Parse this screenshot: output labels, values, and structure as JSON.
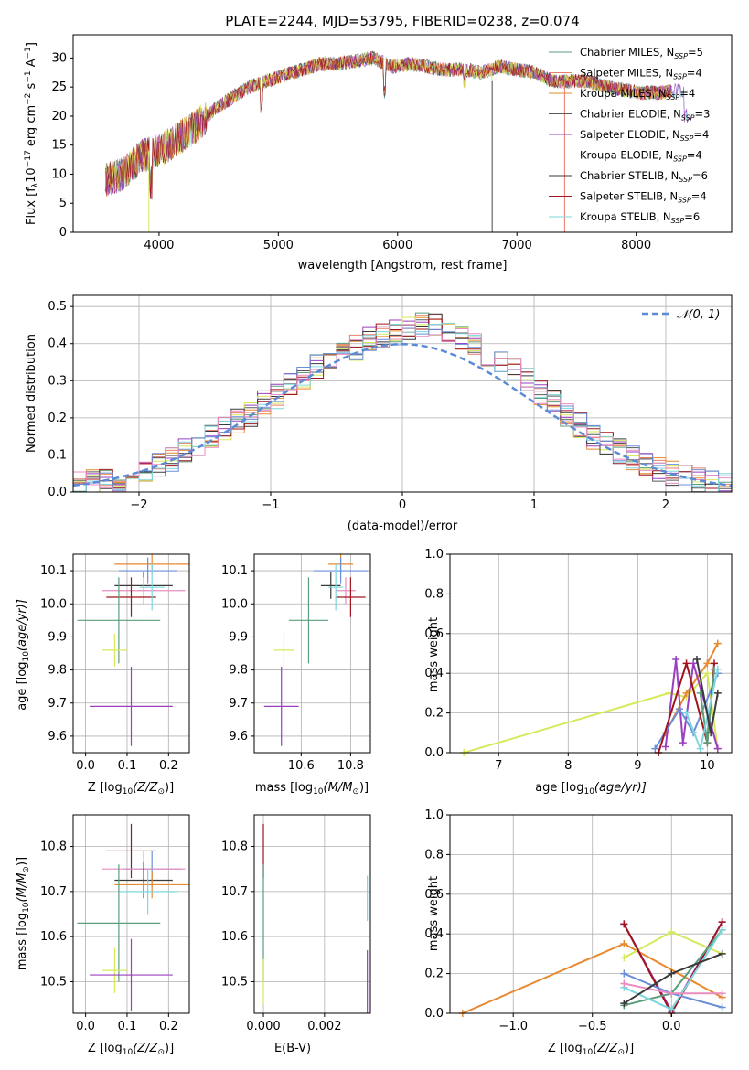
{
  "colors": [
    "#5b9e7c",
    "#e97d6c",
    "#e7892f",
    "#5a5a5a",
    "#9b3fbf",
    "#d7e85b",
    "#3a3a3a",
    "#a0141e",
    "#7dd6de"
  ],
  "extra_colors": {
    "blue": "#6a8fd8",
    "pink": "#e98cc0",
    "gaussian": "#5b8bd6"
  },
  "spectrum": {
    "title": "PLATE=2244, MJD=53795, FIBERID=0238, z=0.074",
    "ylabel": "Flux [f$_\\lambda$10$^{-17}$ erg cm$^{-2}$ s$^{-1}$ A$^{-1}$]",
    "ylabel_parts": [
      "Flux [f",
      "λ",
      "10",
      "−17",
      " erg cm",
      "−2",
      " s",
      "−1",
      " A",
      "−1",
      "]"
    ],
    "xlabel": "wavelength [Angstrom, rest frame]",
    "xticks": [
      "4000",
      "5000",
      "6000",
      "7000",
      "8000"
    ],
    "yticks": [
      "0",
      "5",
      "10",
      "15",
      "20",
      "25",
      "30"
    ],
    "legend": [
      {
        "label": "Chabrier MILES, N",
        "sub": "SSP",
        "val": "=5"
      },
      {
        "label": "Salpeter MILES, N",
        "sub": "SSP",
        "val": "=4"
      },
      {
        "label": "Kroupa MILES, N",
        "sub": "SSP",
        "val": "=4"
      },
      {
        "label": "Chabrier ELODIE, N",
        "sub": "SSP",
        "val": "=3"
      },
      {
        "label": "Salpeter ELODIE, N",
        "sub": "SSP",
        "val": "=4"
      },
      {
        "label": "Kroupa ELODIE, N",
        "sub": "SSP",
        "val": "=4"
      },
      {
        "label": "Chabrier STELIB, N",
        "sub": "SSP",
        "val": "=6"
      },
      {
        "label": "Salpeter STELIB, N",
        "sub": "SSP",
        "val": "=4"
      },
      {
        "label": "Kroupa STELIB, N",
        "sub": "SSP",
        "val": "=6"
      }
    ]
  },
  "hist": {
    "ylabel": "Normed distribution",
    "xlabel": "(data-model)/error",
    "xticks": [
      "−2",
      "−1",
      "0",
      "1",
      "2"
    ],
    "yticks": [
      "0.0",
      "0.1",
      "0.2",
      "0.3",
      "0.4",
      "0.5"
    ],
    "legend": "𝒩(0, 1)"
  },
  "age_Z": {
    "ylabel": "age  [log",
    "ylabel_b": "(age/yr)]",
    "xlabel": "Z [log",
    "xlabel_b": "(Z/Z",
    "xticks": [
      "0.0",
      "0.1",
      "0.2"
    ],
    "yticks": [
      "9.6",
      "9.7",
      "9.8",
      "9.9",
      "10.0",
      "10.1"
    ]
  },
  "age_mass": {
    "xlabel": "mass [log",
    "xlabel_b": "(M/M",
    "xticks": [
      "10.6",
      "10.8"
    ],
    "yticks": [
      "9.6",
      "9.7",
      "9.8",
      "9.9",
      "10.0",
      "10.1"
    ]
  },
  "mw_age": {
    "ylabel": "mass weight",
    "xlabel": "age  [log",
    "xlabel_b": "(age/yr)]",
    "xticks": [
      "7",
      "8",
      "9",
      "10"
    ],
    "yticks": [
      "0.0",
      "0.2",
      "0.4",
      "0.6",
      "0.8",
      "1.0"
    ]
  },
  "mass_Z": {
    "ylabel": "mass [log",
    "ylabel_b": "(M/M",
    "xlabel": "Z [log",
    "xlabel_b": "(Z/Z",
    "xticks": [
      "0.0",
      "0.1",
      "0.2"
    ],
    "yticks": [
      "10.5",
      "10.6",
      "10.7",
      "10.8"
    ]
  },
  "mass_ebv": {
    "xlabel": "E(B-V)",
    "xticks": [
      "0.000",
      "0.002"
    ],
    "yticks": [
      "10.5",
      "10.6",
      "10.7",
      "10.8"
    ]
  },
  "mw_Z": {
    "ylabel": "mass weight",
    "xlabel": "Z [log",
    "xlabel_b": "(Z/Z",
    "xticks": [
      "−1.0",
      "−0.5",
      "0.0"
    ],
    "yticks": [
      "0.0",
      "0.2",
      "0.4",
      "0.6",
      "0.8",
      "1.0"
    ]
  },
  "chart_data": [
    {
      "type": "line",
      "title": "PLATE=2244, MJD=53795, FIBERID=0238, z=0.074",
      "xlabel": "wavelength [Angstrom, rest frame]",
      "ylabel": "Flux [fλ10−17 erg cm−2 s−1 A−1]",
      "xlim": [
        3280,
        8800
      ],
      "ylim": [
        0,
        34
      ],
      "x": [
        3550,
        3700,
        3850,
        4000,
        4150,
        4300,
        4450,
        4600,
        4750,
        4900,
        5050,
        5200,
        5350,
        5500,
        5650,
        5800,
        5950,
        6100,
        6250,
        6400,
        6550,
        6700,
        6850,
        7000,
        7150,
        7300,
        7450,
        7600,
        7750,
        7900,
        8050,
        8200,
        8350,
        8500,
        8650,
        8800
      ],
      "series": [
        {
          "values": [
            9,
            10,
            13,
            14,
            16,
            18,
            21,
            23,
            25,
            26,
            27,
            28,
            29,
            29,
            29.5,
            30,
            28.5,
            29,
            28.5,
            28,
            28,
            27.5,
            28.5,
            28,
            27.5,
            26,
            26,
            26,
            25,
            24.5,
            24,
            24,
            24.5,
            23.5,
            22,
            21
          ]
        }
      ],
      "grid": false,
      "legend_position": "upper right"
    },
    {
      "type": "bar",
      "xlabel": "(data-model)/error",
      "ylabel": "Normed distribution",
      "xlim": [
        -2.5,
        2.5
      ],
      "ylim": [
        0,
        0.53
      ],
      "bin_width": 0.1,
      "x": [
        -2.5,
        -2.4,
        -2.3,
        -2.2,
        -2.1,
        -2.0,
        -1.9,
        -1.8,
        -1.7,
        -1.6,
        -1.5,
        -1.4,
        -1.3,
        -1.2,
        -1.1,
        -1.0,
        -0.9,
        -0.8,
        -0.7,
        -0.6,
        -0.5,
        -0.4,
        -0.3,
        -0.2,
        -0.1,
        0.0,
        0.1,
        0.2,
        0.3,
        0.4,
        0.5,
        0.6,
        0.7,
        0.8,
        0.9,
        1.0,
        1.1,
        1.2,
        1.3,
        1.4,
        1.5,
        1.6,
        1.7,
        1.8,
        1.9,
        2.0,
        2.1,
        2.2,
        2.3,
        2.4
      ],
      "series": [
        {
          "name": "envelope",
          "values": [
            0.02,
            0.025,
            0.03,
            0.035,
            0.045,
            0.055,
            0.07,
            0.09,
            0.11,
            0.13,
            0.15,
            0.17,
            0.19,
            0.21,
            0.24,
            0.26,
            0.29,
            0.31,
            0.34,
            0.36,
            0.38,
            0.39,
            0.41,
            0.42,
            0.43,
            0.44,
            0.45,
            0.45,
            0.44,
            0.42,
            0.4,
            0.37,
            0.35,
            0.33,
            0.3,
            0.27,
            0.24,
            0.21,
            0.18,
            0.15,
            0.13,
            0.11,
            0.09,
            0.07,
            0.06,
            0.05,
            0.04,
            0.03,
            0.025,
            0.02
          ]
        }
      ],
      "reference": {
        "name": "𝒩(0, 1)",
        "mean": 0,
        "sigma": 1
      },
      "grid": true,
      "legend_position": "upper right"
    },
    {
      "type": "scatter",
      "xlabel": "Z [log10(Z/Z☉)]",
      "ylabel": "age  [log10(age/yr)]",
      "xlim": [
        -0.03,
        0.25
      ],
      "ylim": [
        9.55,
        10.15
      ],
      "points": [
        {
          "x": 0.16,
          "y": 10.12,
          "xerr": 0.09,
          "yerr": 0.03,
          "c": 2
        },
        {
          "x": 0.15,
          "y": 10.1,
          "xerr": 0.07,
          "yerr": 0.04,
          "c": 9
        },
        {
          "x": 0.14,
          "y": 10.055,
          "xerr": 0.07,
          "yerr": 0.04,
          "c": 6
        },
        {
          "x": 0.14,
          "y": 10.04,
          "xerr": 0.1,
          "yerr": 0.04,
          "c": 10
        },
        {
          "x": 0.11,
          "y": 10.02,
          "xerr": 0.06,
          "yerr": 0.06,
          "c": 7
        },
        {
          "x": 0.16,
          "y": 10.05,
          "xerr": 0.03,
          "yerr": 0.07,
          "c": 8
        },
        {
          "x": 0.08,
          "y": 9.95,
          "xerr": 0.1,
          "yerr": 0.13,
          "c": 0
        },
        {
          "x": 0.07,
          "y": 9.86,
          "xerr": 0.03,
          "yerr": 0.05,
          "c": 5
        },
        {
          "x": 0.11,
          "y": 9.69,
          "xerr": 0.1,
          "yerr": 0.12,
          "c": 4
        }
      ]
    },
    {
      "type": "scatter",
      "xlabel": "mass [log10(M/M☉)]",
      "ylabel": "",
      "xlim": [
        10.41,
        10.88
      ],
      "ylim": [
        9.55,
        10.15
      ],
      "points": [
        {
          "x": 10.76,
          "y": 10.12,
          "xerr": 0.05,
          "yerr": 0.03,
          "c": 2
        },
        {
          "x": 10.76,
          "y": 10.1,
          "xerr": 0.11,
          "yerr": 0.04,
          "c": 9
        },
        {
          "x": 10.72,
          "y": 10.055,
          "xerr": 0.04,
          "yerr": 0.04,
          "c": 6
        },
        {
          "x": 10.78,
          "y": 10.04,
          "xerr": 0.04,
          "yerr": 0.04,
          "c": 10
        },
        {
          "x": 10.8,
          "y": 10.02,
          "xerr": 0.06,
          "yerr": 0.06,
          "c": 7
        },
        {
          "x": 10.74,
          "y": 10.05,
          "xerr": 0.03,
          "yerr": 0.07,
          "c": 8
        },
        {
          "x": 10.63,
          "y": 9.95,
          "xerr": 0.08,
          "yerr": 0.13,
          "c": 0
        },
        {
          "x": 10.53,
          "y": 9.86,
          "xerr": 0.04,
          "yerr": 0.05,
          "c": 5
        },
        {
          "x": 10.52,
          "y": 9.69,
          "xerr": 0.07,
          "yerr": 0.12,
          "c": 4
        }
      ]
    },
    {
      "type": "line",
      "xlabel": "age  [log10(age/yr)]",
      "ylabel": "mass weight",
      "xlim": [
        6.3,
        10.35
      ],
      "ylim": [
        0,
        1
      ],
      "series": [
        {
          "c": 5,
          "x": [
            6.5,
            9.45,
            9.7,
            10.0,
            10.15
          ],
          "y": [
            0.0,
            0.3,
            0.28,
            0.4,
            0.02
          ]
        },
        {
          "c": 2,
          "x": [
            9.4,
            9.7,
            10.0,
            10.15
          ],
          "y": [
            0.1,
            0.3,
            0.45,
            0.55
          ]
        },
        {
          "c": 4,
          "x": [
            9.4,
            9.55,
            9.65,
            9.8,
            10.15
          ],
          "y": [
            0.03,
            0.47,
            0.05,
            0.45,
            0.02
          ]
        },
        {
          "c": 9,
          "x": [
            9.25,
            9.6,
            9.8,
            10.15
          ],
          "y": [
            0.02,
            0.22,
            0.1,
            0.4
          ]
        },
        {
          "c": 7,
          "x": [
            9.3,
            9.7,
            10.0,
            10.1
          ],
          "y": [
            0.0,
            0.45,
            0.05,
            0.45
          ]
        },
        {
          "c": 0,
          "x": [
            9.9,
            10.0,
            10.1
          ],
          "y": [
            0.3,
            0.05,
            0.42
          ]
        },
        {
          "c": 8,
          "x": [
            9.7,
            9.9,
            10.15
          ],
          "y": [
            0.2,
            0.02,
            0.42
          ]
        },
        {
          "c": 6,
          "x": [
            9.85,
            10.05,
            10.15
          ],
          "y": [
            0.47,
            0.1,
            0.3
          ]
        }
      ],
      "grid": true
    },
    {
      "type": "scatter",
      "xlabel": "Z [log10(Z/Z☉)]",
      "ylabel": "mass [log10(M/M☉)]",
      "xlim": [
        -0.03,
        0.25
      ],
      "ylim": [
        10.43,
        10.87
      ],
      "points": [
        {
          "x": 0.11,
          "y": 10.79,
          "xerr": 0.06,
          "yerr": 0.06,
          "c": 7
        },
        {
          "x": 0.16,
          "y": 10.75,
          "xerr": 0.07,
          "yerr": 0.04,
          "c": 9
        },
        {
          "x": 0.14,
          "y": 10.75,
          "xerr": 0.1,
          "yerr": 0.04,
          "c": 10
        },
        {
          "x": 0.14,
          "y": 10.725,
          "xerr": 0.07,
          "yerr": 0.04,
          "c": 6
        },
        {
          "x": 0.16,
          "y": 10.715,
          "xerr": 0.09,
          "yerr": 0.03,
          "c": 2
        },
        {
          "x": 0.15,
          "y": 10.7,
          "xerr": 0.07,
          "yerr": 0.05,
          "c": 8
        },
        {
          "x": 0.08,
          "y": 10.63,
          "xerr": 0.1,
          "yerr": 0.13,
          "c": 0
        },
        {
          "x": 0.07,
          "y": 10.525,
          "xerr": 0.03,
          "yerr": 0.05,
          "c": 5
        },
        {
          "x": 0.11,
          "y": 10.515,
          "xerr": 0.1,
          "yerr": 0.08,
          "c": 4
        }
      ]
    },
    {
      "type": "scatter",
      "xlabel": "E(B-V)",
      "ylabel": "",
      "xlim": [
        -0.0003,
        0.0035
      ],
      "ylim": [
        10.43,
        10.87
      ],
      "points": [
        {
          "x": 0.0,
          "y": 10.79,
          "yerr": 0.06,
          "c": 7
        },
        {
          "x": 0.0,
          "y": 10.63,
          "yerr": 0.13,
          "c": 0
        },
        {
          "x": 0.0,
          "y": 10.5,
          "yerr": 0.05,
          "c": 5
        },
        {
          "x": 0.0034,
          "y": 10.685,
          "yerr": 0.05,
          "c": 8
        },
        {
          "x": 0.0034,
          "y": 10.5,
          "yerr": 0.07,
          "c": 4
        }
      ]
    },
    {
      "type": "line",
      "xlabel": "Z [log10(Z/Z☉)]",
      "ylabel": "mass weight",
      "xlim": [
        -1.4,
        0.38
      ],
      "ylim": [
        0,
        1
      ],
      "series": [
        {
          "c": 2,
          "x": [
            -1.32,
            -0.3,
            0.32
          ],
          "y": [
            0.0,
            0.35,
            0.08
          ]
        },
        {
          "c": 5,
          "x": [
            -0.3,
            0.0,
            0.32
          ],
          "y": [
            0.28,
            0.41,
            0.3
          ]
        },
        {
          "c": 4,
          "x": [
            -0.3,
            0.0,
            0.32
          ],
          "y": [
            0.45,
            0.01,
            0.46
          ]
        },
        {
          "c": 7,
          "x": [
            -0.3,
            0.0,
            0.32
          ],
          "y": [
            0.45,
            0.0,
            0.46
          ]
        },
        {
          "c": 9,
          "x": [
            -0.3,
            0.0,
            0.32
          ],
          "y": [
            0.2,
            0.1,
            0.03
          ]
        },
        {
          "c": 0,
          "x": [
            -0.3,
            0.0,
            0.32
          ],
          "y": [
            0.04,
            0.1,
            0.42
          ]
        },
        {
          "c": 8,
          "x": [
            -0.3,
            0.0,
            0.32
          ],
          "y": [
            0.13,
            0.02,
            0.42
          ]
        },
        {
          "c": 10,
          "x": [
            -0.3,
            0.0,
            0.32
          ],
          "y": [
            0.15,
            0.1,
            0.1
          ]
        },
        {
          "c": 6,
          "x": [
            -0.3,
            0.0,
            0.32
          ],
          "y": [
            0.05,
            0.2,
            0.3
          ]
        }
      ],
      "grid": true
    }
  ]
}
